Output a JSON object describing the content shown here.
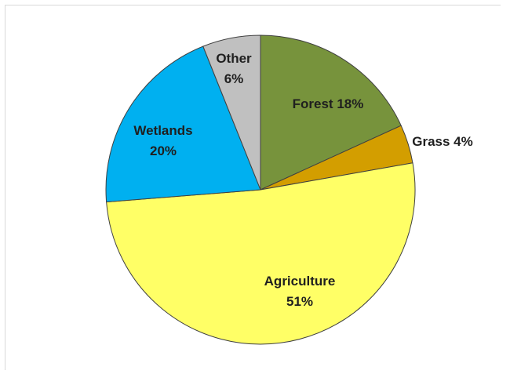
{
  "chart_data": {
    "type": "pie",
    "title": "",
    "start_angle_deg": -90,
    "direction": "clockwise",
    "slices": [
      {
        "name": "Forest",
        "value": 18,
        "label_line1": "Forest 18%",
        "label_line2": "",
        "color": "#77933c"
      },
      {
        "name": "Grass",
        "value": 4,
        "label_line1": "Grass 4%",
        "label_line2": "",
        "color": "#d39e00"
      },
      {
        "name": "Agriculture",
        "value": 51,
        "label_line1": "Agriculture",
        "label_line2": "51%",
        "color": "#ffff66"
      },
      {
        "name": "Wetlands",
        "value": 20,
        "label_line1": "Wetlands",
        "label_line2": "20%",
        "color": "#00b0f0"
      },
      {
        "name": "Other",
        "value": 6,
        "label_line1": "Other",
        "label_line2": "6%",
        "color": "#c0c0c0"
      }
    ]
  }
}
